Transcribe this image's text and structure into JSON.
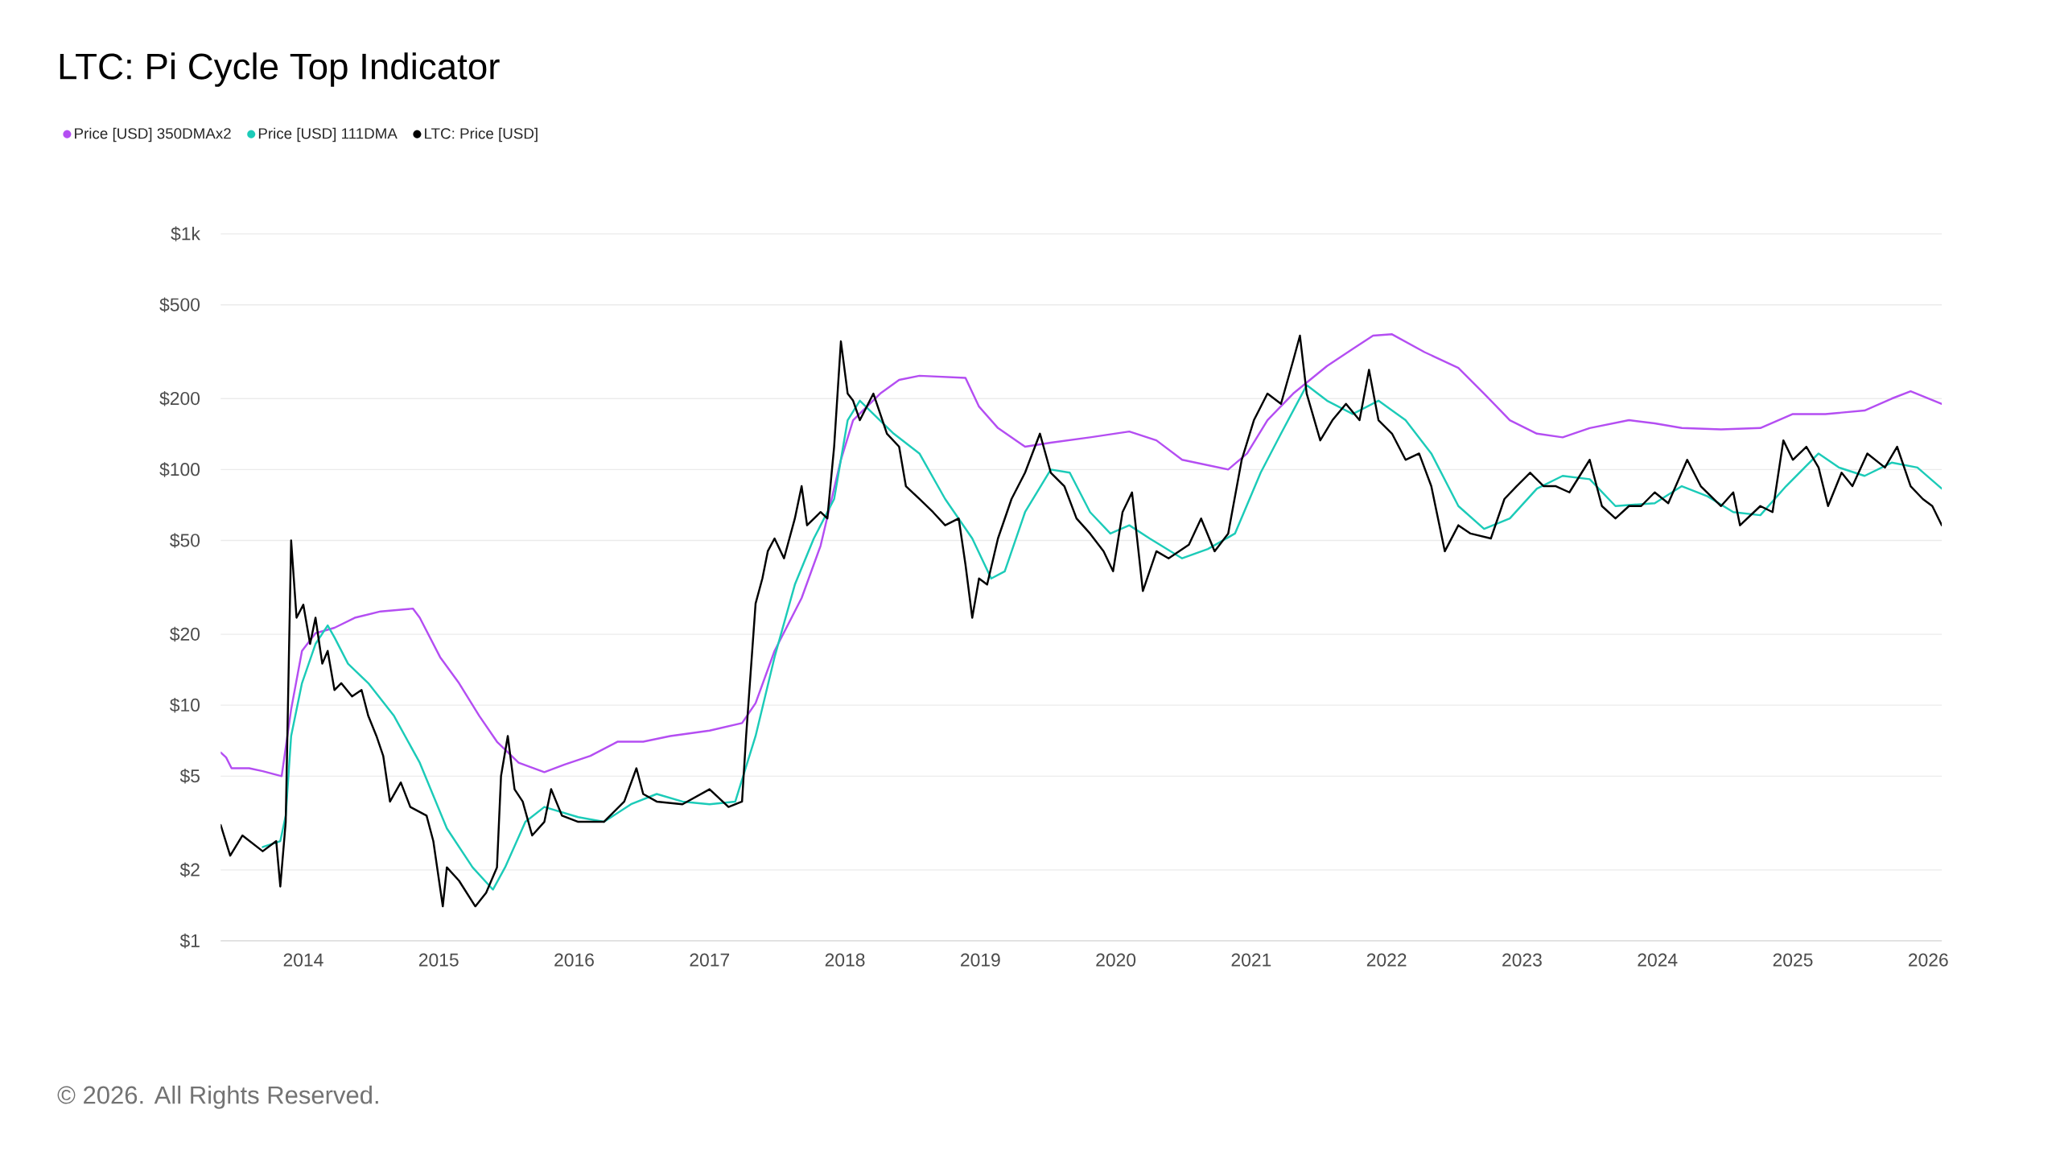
{
  "chart_data": {
    "type": "line",
    "title": "LTC: Pi Cycle Top Indicator",
    "annotations": [
      "© 2026. All Rights Reserved."
    ],
    "log": "y",
    "grid": "y",
    "legend": "top left",
    "xlim": [
      2013.39,
      2026.1
    ],
    "xticks": [
      2014,
      2015,
      2016,
      2017,
      2018,
      2019,
      2020,
      2021,
      2022,
      2023,
      2024,
      2025,
      2026
    ],
    "ylim": [
      1,
      1000
    ],
    "yticks": [
      {
        "value": 1,
        "label": "$1"
      },
      {
        "value": 2,
        "label": "$2"
      },
      {
        "value": 5,
        "label": "$5"
      },
      {
        "value": 10,
        "label": "$10"
      },
      {
        "value": 20,
        "label": "$20"
      },
      {
        "value": 50,
        "label": "$50"
      },
      {
        "value": 100,
        "label": "$100"
      },
      {
        "value": 200,
        "label": "$200"
      },
      {
        "value": 500,
        "label": "$500"
      },
      {
        "value": 1000,
        "label": "$1k"
      }
    ],
    "series": [
      {
        "name": "Price [USD] 350DMAx2",
        "color": "#b44ef2",
        "x": [
          2013.39,
          2013.43,
          2013.47,
          2013.6,
          2013.7,
          2013.84,
          2013.91,
          2013.99,
          2014.09,
          2014.23,
          2014.38,
          2014.57,
          2014.81,
          2014.86,
          2015.01,
          2015.15,
          2015.3,
          2015.43,
          2015.59,
          2015.78,
          2015.93,
          2016.12,
          2016.32,
          2016.51,
          2016.71,
          2017.0,
          2017.24,
          2017.34,
          2017.48,
          2017.68,
          2017.82,
          2017.97,
          2018.06,
          2018.26,
          2018.4,
          2018.55,
          2018.89,
          2018.99,
          2019.13,
          2019.33,
          2019.52,
          2019.81,
          2020.1,
          2020.3,
          2020.49,
          2020.83,
          2020.97,
          2021.12,
          2021.31,
          2021.56,
          2021.75,
          2021.9,
          2022.04,
          2022.28,
          2022.53,
          2022.72,
          2022.91,
          2023.11,
          2023.3,
          2023.5,
          2023.79,
          2023.98,
          2024.18,
          2024.47,
          2024.76,
          2025.0,
          2025.24,
          2025.53,
          2025.73,
          2025.87,
          2026.1
        ],
        "values": [
          6.3,
          6.0,
          5.4,
          5.4,
          5.25,
          5.0,
          9.6,
          17,
          20.2,
          21.3,
          23.5,
          25,
          25.7,
          23.5,
          16,
          12.4,
          9,
          7,
          5.7,
          5.2,
          5.6,
          6.1,
          7,
          7,
          7.4,
          7.8,
          8.4,
          10.2,
          17,
          28.5,
          47.5,
          110,
          162,
          210,
          240,
          250,
          245,
          185,
          150,
          125,
          130,
          137,
          145,
          133,
          110,
          100,
          117,
          162,
          210,
          275,
          325,
          370,
          375,
          315,
          270,
          210,
          162,
          142,
          137,
          150,
          162,
          157,
          150,
          148,
          150,
          172,
          172,
          178,
          200,
          215,
          190
        ]
      },
      {
        "name": "Price [USD] 111DMA",
        "color": "#1ccbb8",
        "x": [
          2013.7,
          2013.83,
          2013.87,
          2013.91,
          2013.99,
          2014.09,
          2014.18,
          2014.23,
          2014.33,
          2014.48,
          2014.67,
          2014.86,
          2015.06,
          2015.25,
          2015.4,
          2015.49,
          2015.64,
          2015.78,
          2016.03,
          2016.22,
          2016.42,
          2016.61,
          2016.8,
          2017.0,
          2017.19,
          2017.34,
          2017.48,
          2017.63,
          2017.77,
          2017.92,
          2018.02,
          2018.11,
          2018.21,
          2018.36,
          2018.55,
          2018.74,
          2018.94,
          2019.08,
          2019.18,
          2019.33,
          2019.52,
          2019.66,
          2019.81,
          2019.96,
          2020.1,
          2020.25,
          2020.49,
          2020.68,
          2020.88,
          2021.07,
          2021.22,
          2021.41,
          2021.56,
          2021.75,
          2021.94,
          2022.14,
          2022.33,
          2022.53,
          2022.72,
          2022.91,
          2023.11,
          2023.3,
          2023.5,
          2023.69,
          2023.98,
          2024.18,
          2024.37,
          2024.56,
          2024.76,
          2024.95,
          2025.19,
          2025.34,
          2025.53,
          2025.73,
          2025.92,
          2026.1
        ],
        "values": [
          2.5,
          2.65,
          3.4,
          7.4,
          12.4,
          18.2,
          21.8,
          19.4,
          15,
          12.4,
          9,
          5.7,
          3.0,
          2.05,
          1.65,
          2.05,
          3.2,
          3.7,
          3.35,
          3.2,
          3.8,
          4.2,
          3.9,
          3.8,
          3.9,
          7.4,
          16,
          32.5,
          51,
          75,
          162,
          196,
          172,
          142,
          117,
          75,
          51,
          34.5,
          37,
          66,
          100,
          97,
          66,
          53.5,
          58,
          51,
          42,
          46,
          53.5,
          97,
          142,
          228,
          196,
          172,
          196,
          162,
          117,
          70,
          56,
          62,
          83,
          94,
          91,
          70,
          72,
          85,
          77,
          66,
          64,
          85,
          117,
          102,
          94,
          107,
          102,
          83
        ]
      },
      {
        "name": "LTC: Price [USD]",
        "color": "#000000",
        "x": [
          2013.39,
          2013.46,
          2013.55,
          2013.7,
          2013.8,
          2013.83,
          2013.87,
          2013.91,
          2013.95,
          2014.0,
          2014.05,
          2014.09,
          2014.14,
          2014.18,
          2014.23,
          2014.28,
          2014.36,
          2014.43,
          2014.48,
          2014.54,
          2014.59,
          2014.64,
          2014.72,
          2014.79,
          2014.91,
          2014.96,
          2015.03,
          2015.06,
          2015.15,
          2015.27,
          2015.35,
          2015.43,
          2015.46,
          2015.51,
          2015.56,
          2015.62,
          2015.69,
          2015.78,
          2015.83,
          2015.91,
          2016.03,
          2016.22,
          2016.37,
          2016.46,
          2016.51,
          2016.61,
          2016.8,
          2017.0,
          2017.14,
          2017.24,
          2017.27,
          2017.34,
          2017.39,
          2017.43,
          2017.48,
          2017.55,
          2017.63,
          2017.68,
          2017.72,
          2017.82,
          2017.87,
          2017.92,
          2017.97,
          2018.02,
          2018.06,
          2018.11,
          2018.21,
          2018.31,
          2018.4,
          2018.45,
          2018.55,
          2018.65,
          2018.74,
          2018.84,
          2018.89,
          2018.94,
          2018.99,
          2019.05,
          2019.13,
          2019.23,
          2019.33,
          2019.44,
          2019.52,
          2019.62,
          2019.71,
          2019.81,
          2019.91,
          2019.98,
          2020.05,
          2020.12,
          2020.2,
          2020.3,
          2020.39,
          2020.54,
          2020.63,
          2020.73,
          2020.83,
          2020.93,
          2021.02,
          2021.12,
          2021.22,
          2021.31,
          2021.36,
          2021.41,
          2021.51,
          2021.6,
          2021.7,
          2021.8,
          2021.87,
          2021.94,
          2022.04,
          2022.14,
          2022.24,
          2022.33,
          2022.43,
          2022.53,
          2022.62,
          2022.77,
          2022.87,
          2022.96,
          2023.06,
          2023.16,
          2023.25,
          2023.35,
          2023.5,
          2023.59,
          2023.69,
          2023.79,
          2023.88,
          2023.98,
          2024.08,
          2024.22,
          2024.32,
          2024.47,
          2024.56,
          2024.61,
          2024.76,
          2024.85,
          2024.93,
          2025.0,
          2025.1,
          2025.19,
          2025.26,
          2025.36,
          2025.44,
          2025.55,
          2025.68,
          2025.77,
          2025.87,
          2025.96,
          2026.03,
          2026.1
        ],
        "values": [
          3.1,
          2.3,
          2.8,
          2.4,
          2.65,
          1.7,
          3.2,
          50,
          23.5,
          26.7,
          18.2,
          23.5,
          15,
          17,
          11.6,
          12.4,
          10.9,
          11.6,
          9,
          7.4,
          6.1,
          3.9,
          4.7,
          3.7,
          3.4,
          2.65,
          1.4,
          2.05,
          1.8,
          1.4,
          1.6,
          2.05,
          5.0,
          7.4,
          4.4,
          3.9,
          2.8,
          3.2,
          4.4,
          3.4,
          3.2,
          3.2,
          3.9,
          5.4,
          4.2,
          3.9,
          3.8,
          4.4,
          3.7,
          3.9,
          7.4,
          27,
          34.5,
          45,
          51,
          42,
          62,
          85,
          58,
          66,
          62,
          125,
          350,
          210,
          196,
          162,
          210,
          142,
          125,
          85,
          75,
          66,
          58,
          62,
          39.5,
          23.5,
          34.5,
          32.5,
          51,
          75,
          97,
          142,
          97,
          85,
          62,
          53.5,
          45,
          37,
          66,
          80,
          30.5,
          45,
          42,
          48,
          62,
          45,
          53.5,
          110,
          162,
          210,
          190,
          290,
          370,
          210,
          133,
          162,
          190,
          162,
          265,
          162,
          142,
          110,
          117,
          85,
          45,
          58,
          53.5,
          51,
          75,
          85,
          97,
          85,
          85,
          80,
          110,
          70,
          62,
          70,
          70,
          80,
          72,
          110,
          85,
          70,
          80,
          58,
          70,
          66,
          133,
          110,
          125,
          102,
          70,
          97,
          85,
          117,
          102,
          125,
          85,
          75,
          70,
          58
        ]
      }
    ]
  }
}
